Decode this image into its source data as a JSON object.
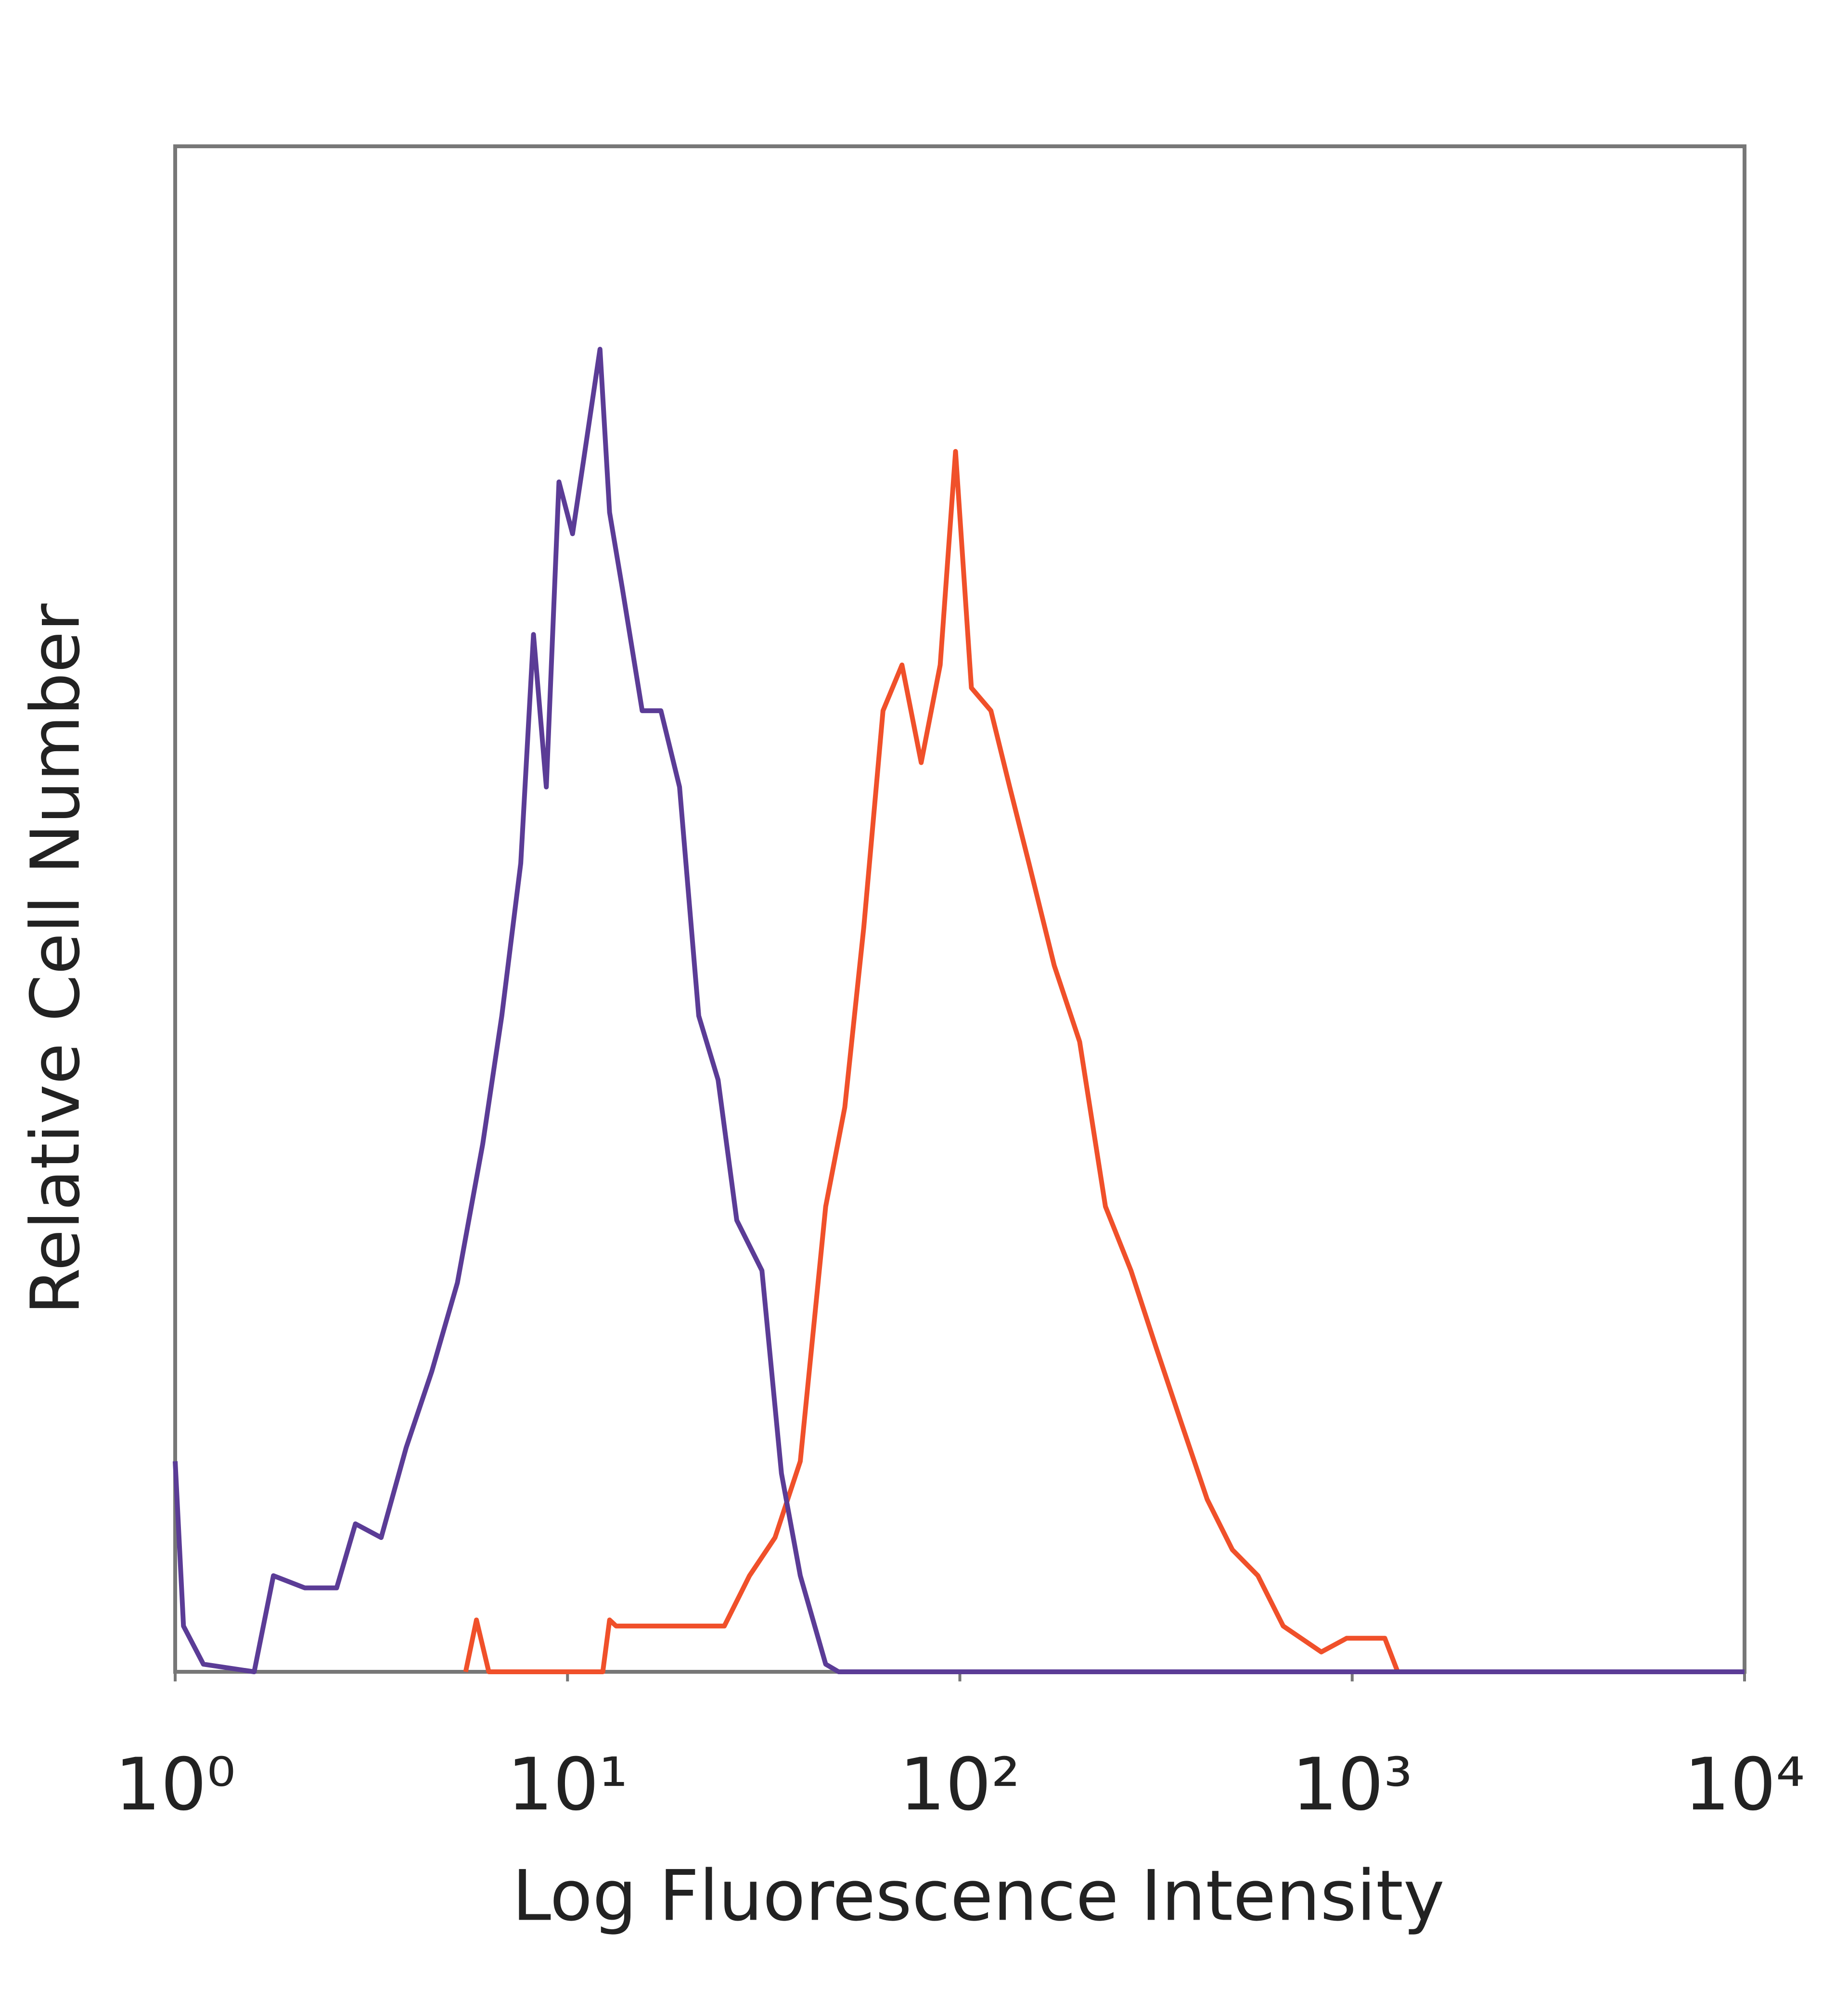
{
  "chart_data": {
    "type": "line",
    "xlabel": "Log Fluorescence Intensity",
    "ylabel": "Relative Cell Number",
    "xscale": "log",
    "xlim": [
      1,
      10000
    ],
    "xticks": [
      {
        "value": 1,
        "label": "10⁰"
      },
      {
        "value": 10,
        "label": "10¹"
      },
      {
        "value": 100,
        "label": "10²"
      },
      {
        "value": 1000,
        "label": "10³"
      },
      {
        "value": 10000,
        "label": "10⁴"
      }
    ],
    "ylim": [
      0,
      100
    ],
    "series": [
      {
        "color": "#5b3c96",
        "x": [
          1,
          1.05,
          1.18,
          1.59,
          1.78,
          2.14,
          2.58,
          2.88,
          3.35,
          3.88,
          4.51,
          5.24,
          6.08,
          6.8,
          7.6,
          8.19,
          8.83,
          9.51,
          10.3,
          11.0,
          12.1,
          12.8,
          13.8,
          15.5,
          17.3,
          19.3,
          21.6,
          24.2,
          27.0,
          31.3,
          35.1,
          39.2,
          45.5,
          49.1,
          10000
        ],
        "values": [
          13.8,
          3,
          0.5,
          0,
          6.3,
          5.5,
          5.5,
          9.7,
          8.8,
          14.7,
          19.7,
          25.5,
          34.6,
          43,
          53,
          68,
          58,
          78,
          74.6,
          79.5,
          86.7,
          76,
          71,
          63,
          63,
          58,
          43,
          38.8,
          29.6,
          26.3,
          13,
          6.3,
          0.5,
          0,
          0
        ]
      },
      {
        "color": "#f0502a",
        "x": [
          5.5,
          5.86,
          6.3,
          12.3,
          12.8,
          13.3,
          25.1,
          29.1,
          33.8,
          39.2,
          45.5,
          50.9,
          56.9,
          63.7,
          71.2,
          79.7,
          89.1,
          97.5,
          107,
          120,
          134,
          150,
          174,
          202,
          235,
          273,
          316,
          367,
          427,
          495,
          575,
          667,
          834,
          968,
          1211,
          1306
        ],
        "values": [
          0,
          3.4,
          0,
          0,
          3.4,
          3,
          3,
          6.3,
          8.8,
          13.8,
          30.5,
          37,
          48.8,
          63,
          66,
          59.6,
          66,
          80,
          64.5,
          63,
          58,
          53,
          46.3,
          41.3,
          30.5,
          26.3,
          21.3,
          16.3,
          11.3,
          8,
          6.3,
          3,
          1.3,
          2.2,
          2.2,
          0
        ]
      }
    ]
  }
}
